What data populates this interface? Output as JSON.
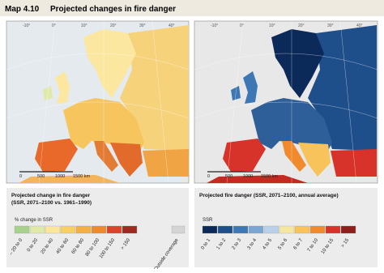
{
  "header": {
    "number": "Map 4.10",
    "title": "Projected changes in fire danger"
  },
  "maps": [
    {
      "degree_labels": [
        "-10°",
        "0°",
        "10°",
        "20°",
        "30°",
        "40°"
      ],
      "scale_labels": [
        "0",
        "500",
        "1000",
        "1500 km"
      ]
    },
    {
      "degree_labels": [
        "-10°",
        "0°",
        "10°",
        "20°",
        "30°",
        "40°"
      ],
      "scale_labels": [
        "0",
        "500",
        "1000",
        "1500 km"
      ]
    }
  ],
  "legends": [
    {
      "title": "Projected change in fire danger",
      "subtitle": "(SSR, 2071–2100 vs. 1961–1990)",
      "unit": "% change in SSR",
      "classes": [
        {
          "label": "– 20 to 0",
          "color": "#a9d18e"
        },
        {
          "label": "0 to 20",
          "color": "#dfe9a8"
        },
        {
          "label": "20 to 40",
          "color": "#fbe79b"
        },
        {
          "label": "40 to 60",
          "color": "#f8d062"
        },
        {
          "label": "60 to 80",
          "color": "#f4b043"
        },
        {
          "label": "80 to 100",
          "color": "#ee8a2c"
        },
        {
          "label": "100 to 150",
          "color": "#d9442a"
        },
        {
          "label": "> 150",
          "color": "#9e2a20"
        }
      ],
      "extra": {
        "label": "Outside coverage",
        "color": "#d4d4d4"
      }
    },
    {
      "title": "Projected fire danger (SSR, 2071–2100, annual average)",
      "unit": "SSR",
      "classes": [
        {
          "label": "0 to 1",
          "color": "#0b2a5a"
        },
        {
          "label": "1 to 2",
          "color": "#1f4f8a"
        },
        {
          "label": "2 to 3",
          "color": "#3d78b5"
        },
        {
          "label": "3 to 4",
          "color": "#7aa6d4"
        },
        {
          "label": "4 to 5",
          "color": "#b8d0e8"
        },
        {
          "label": "5 to 6",
          "color": "#f5e7a0"
        },
        {
          "label": "6 to 7",
          "color": "#f7c35a"
        },
        {
          "label": "7 to 10",
          "color": "#f08a2c"
        },
        {
          "label": "10 to 15",
          "color": "#d8332a"
        },
        {
          "label": "> 15",
          "color": "#8f1d1a"
        }
      ]
    }
  ]
}
